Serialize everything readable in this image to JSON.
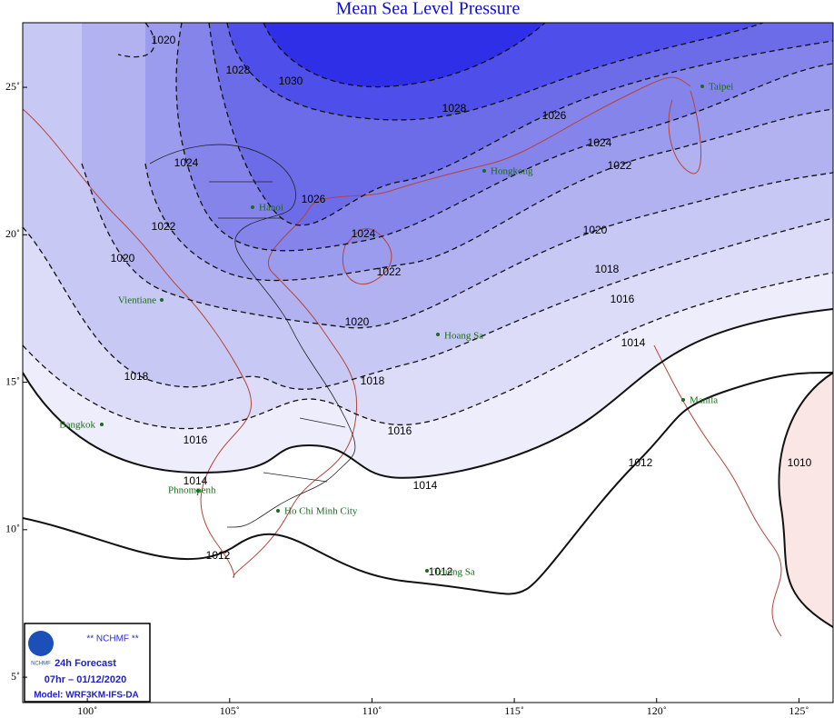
{
  "title": "Mean Sea Level Pressure",
  "map": {
    "lon_range": [
      97.73,
      126.2
    ],
    "lat_range": [
      4.14,
      27.19
    ],
    "lon_ticks": [
      {
        "value": 100,
        "label": "100˚"
      },
      {
        "value": 105,
        "label": "105˚"
      },
      {
        "value": 110,
        "label": "110˚"
      },
      {
        "value": 115,
        "label": "115˚"
      },
      {
        "value": 120,
        "label": "120˚"
      },
      {
        "value": 125,
        "label": "125˚"
      }
    ],
    "lat_ticks": [
      {
        "value": 25,
        "label": "25˚"
      },
      {
        "value": 20,
        "label": "20˚"
      },
      {
        "value": 15,
        "label": "15˚"
      },
      {
        "value": 10,
        "label": "10˚"
      },
      {
        "value": 5,
        "label": "5˚"
      }
    ]
  },
  "isobar_labels": [
    1020,
    1028,
    1030,
    1028,
    1026,
    1024,
    1022,
    1024,
    1026,
    1024,
    1022,
    1020,
    1022,
    1020,
    1018,
    1016,
    1020,
    1018,
    1018,
    1014,
    1016,
    1016,
    1014,
    1014,
    1012,
    1010,
    1012,
    1012
  ],
  "cities": [
    "Taipei",
    "Hongkong",
    "Hanoi",
    "Vientiane",
    "Hoang Sa",
    "Manila",
    "Bangkok",
    "Phnompenh",
    "Ho Chi Minh City",
    "Truong Sa"
  ],
  "legend": {
    "agency": "** NCHMF **",
    "logo": "NCHMF",
    "forecast": "24h Forecast",
    "time": "07hr – 01/12/2020",
    "model": "Model: WRF3KM-IFS-DA"
  }
}
